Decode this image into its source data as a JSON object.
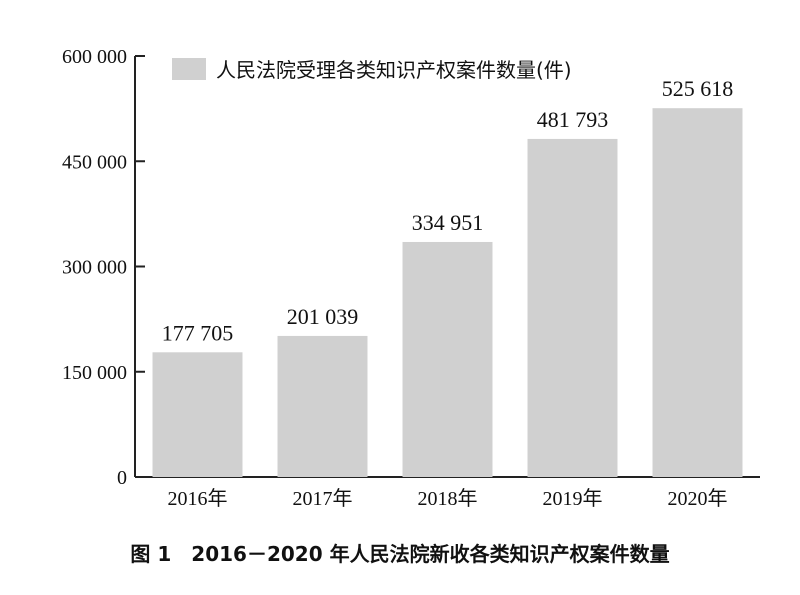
{
  "chart_data": {
    "type": "bar",
    "categories": [
      "2016年",
      "2017年",
      "2018年",
      "2019年",
      "2020年"
    ],
    "series": [
      {
        "name": "人民法院受理各类知识产权案件数量(件)",
        "values": [
          177705,
          201039,
          334951,
          481793,
          525618
        ]
      }
    ],
    "value_labels": [
      "177 705",
      "201 039",
      "334 951",
      "481 793",
      "525 618"
    ],
    "ylim": [
      0,
      600000
    ],
    "yticks": [
      0,
      150000,
      300000,
      450000,
      600000
    ],
    "ytick_labels": [
      "0",
      "150 000",
      "300 000",
      "450 000",
      "600 000"
    ],
    "grid": false,
    "legend_position": "top-left",
    "bar_color": "#d0d0d0",
    "axis_color": "#222222"
  },
  "caption": "图 1　2016－2020 年人民法院新收各类知识产权案件数量"
}
